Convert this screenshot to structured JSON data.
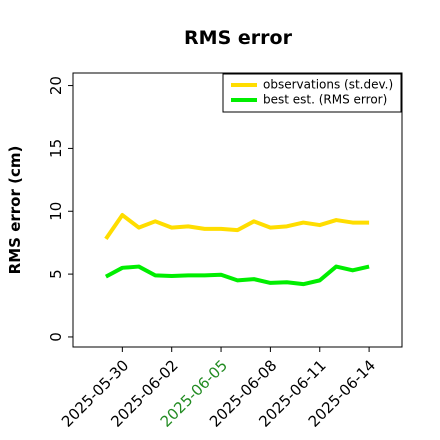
{
  "chart_data": {
    "type": "line",
    "title": "RMS error",
    "y_label": "RMS error (cm)",
    "x": [
      "2025-05-29",
      "2025-05-30",
      "2025-05-31",
      "2025-06-01",
      "2025-06-02",
      "2025-06-03",
      "2025-06-04",
      "2025-06-05",
      "2025-06-06",
      "2025-06-07",
      "2025-06-08",
      "2025-06-09",
      "2025-06-10",
      "2025-06-11",
      "2025-06-12",
      "2025-06-13",
      "2025-06-14"
    ],
    "series": [
      {
        "name": "observations (st.dev.)",
        "color": "#ffdd00",
        "values": [
          7.8,
          9.7,
          8.7,
          9.2,
          8.7,
          8.8,
          8.6,
          8.6,
          8.5,
          9.2,
          8.7,
          8.8,
          9.1,
          8.9,
          9.3,
          9.1,
          9.1
        ]
      },
      {
        "name": "best est. (RMS error)",
        "color": "#00ee00",
        "values": [
          4.8,
          5.5,
          5.6,
          4.9,
          4.85,
          4.9,
          4.9,
          4.95,
          4.5,
          4.6,
          4.3,
          4.35,
          4.2,
          4.5,
          5.6,
          5.3,
          5.6
        ]
      }
    ],
    "xlim": [
      "2025-05-27",
      "2025-06-16"
    ],
    "xticks": [
      "2025-05-30",
      "2025-06-02",
      "2025-06-05",
      "2025-06-08",
      "2025-06-11",
      "2025-06-14"
    ],
    "highlight_xtick": "2025-06-05",
    "highlight_color": "#228b22",
    "ylim": [
      -0.8,
      21
    ],
    "yticks": [
      0,
      5,
      10,
      15,
      20
    ],
    "legend": "upper right",
    "grid": false
  }
}
